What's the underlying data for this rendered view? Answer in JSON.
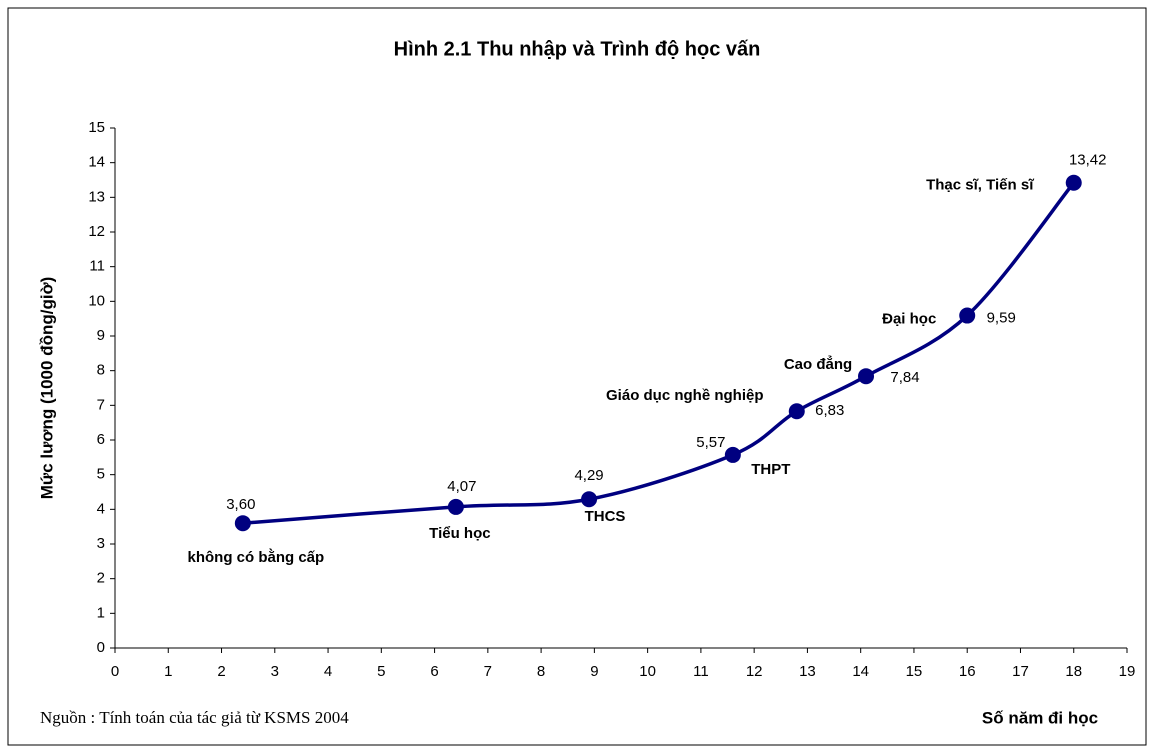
{
  "chart_data": {
    "type": "line",
    "title": "Hình 2.1 Thu nhập và Trình độ học vấn",
    "xlabel": "Số năm đi học",
    "ylabel": "Mức lương (1000 đồng/giờ)",
    "source": "Nguồn : Tính toán của tác giả từ KSMS 2004",
    "series": [
      {
        "name": null,
        "color": "#000080",
        "x": [
          2.4,
          6.4,
          8.9,
          11.6,
          12.8,
          14.1,
          16,
          18
        ],
        "values": [
          3.6,
          4.07,
          4.29,
          5.57,
          6.83,
          7.84,
          9.59,
          13.42
        ],
        "value_labels": [
          "3,60",
          "4,07",
          "4,29",
          "5,57",
          "6,83",
          "7,84",
          "9,59",
          "13,42"
        ],
        "point_labels": [
          "không có bằng cấp",
          "Tiểu học",
          "THCS",
          "THPT",
          "Giáo dục nghề nghiệp",
          "Cao đẳng",
          "Đại học",
          "Thạc sĩ, Tiến sĩ"
        ]
      }
    ],
    "xlim": [
      0,
      19
    ],
    "xticks": [
      0,
      1,
      2,
      3,
      4,
      5,
      6,
      7,
      8,
      9,
      10,
      11,
      12,
      13,
      14,
      15,
      16,
      17,
      18,
      19
    ],
    "ylim": [
      0,
      15
    ],
    "yticks": [
      0,
      1,
      2,
      3,
      4,
      5,
      6,
      7,
      8,
      9,
      10,
      11,
      12,
      13,
      14,
      15
    ],
    "smooth": true
  }
}
